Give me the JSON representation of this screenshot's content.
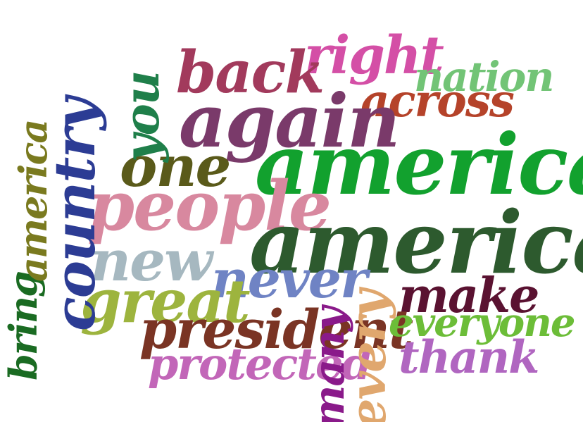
{
  "words": {
    "america_1": {
      "text": "america",
      "color": "#12a12e"
    },
    "america_2": {
      "text": "america",
      "color": "#2d5a2e"
    },
    "again": {
      "text": "again",
      "color": "#7a3a6a"
    },
    "back": {
      "text": "back",
      "color": "#a23a5c"
    },
    "right": {
      "text": "right",
      "color": "#d44fa6"
    },
    "nation": {
      "text": "nation",
      "color": "#72c476"
    },
    "across": {
      "text": "across",
      "color": "#b5432a"
    },
    "one": {
      "text": "one",
      "color": "#5a5a1a"
    },
    "you": {
      "text": "you",
      "color": "#1f7f4a"
    },
    "people": {
      "text": "people",
      "color": "#d8889f"
    },
    "new": {
      "text": "new",
      "color": "#a6b8c0"
    },
    "never": {
      "text": "never",
      "color": "#6f83c4"
    },
    "great": {
      "text": "great",
      "color": "#9db43e"
    },
    "make": {
      "text": "make",
      "color": "#5a1231"
    },
    "president": {
      "text": "president",
      "color": "#7a3424"
    },
    "everyone": {
      "text": "everyone",
      "color": "#6cbd38"
    },
    "thank": {
      "text": "thank",
      "color": "#b066c0"
    },
    "protected": {
      "text": "protected",
      "color": "#c266b8"
    },
    "bring": {
      "text": "bring",
      "color": "#1a6b22"
    },
    "america_3": {
      "text": "america",
      "color": "#7a7a1f"
    },
    "country": {
      "text": "country",
      "color": "#2c3c94"
    },
    "every": {
      "text": "every",
      "color": "#e0a76e"
    },
    "many": {
      "text": "many",
      "color": "#8a1a8a"
    }
  }
}
